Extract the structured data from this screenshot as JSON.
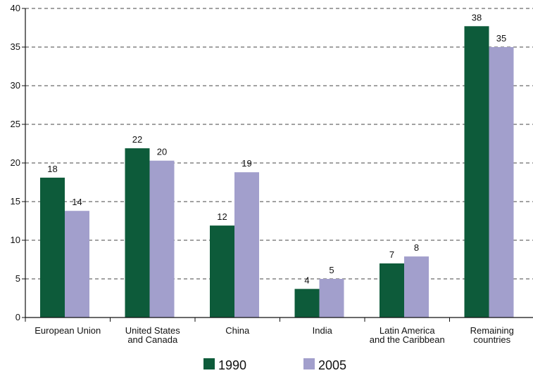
{
  "chart_data": {
    "type": "bar",
    "title": "",
    "xlabel": "",
    "ylabel": "",
    "ylim": [
      0,
      40
    ],
    "yticks": [
      0,
      5,
      10,
      15,
      20,
      25,
      30,
      35,
      40
    ],
    "grid": true,
    "legend_position": "bottom",
    "categories": [
      [
        "European Union"
      ],
      [
        "United States",
        "and Canada"
      ],
      [
        "China"
      ],
      [
        "India"
      ],
      [
        "Latin America",
        "and the Caribbean"
      ],
      [
        "Remaining",
        "countries"
      ]
    ],
    "series": [
      {
        "name": "1990",
        "color": "#0d5b3a",
        "values": [
          18.1,
          21.9,
          11.9,
          3.7,
          7.0,
          37.7
        ],
        "labels": [
          "18",
          "22",
          "12",
          "4",
          "7",
          "38"
        ]
      },
      {
        "name": "2005",
        "color": "#a29fcc",
        "values": [
          13.8,
          20.3,
          18.8,
          5.0,
          7.9,
          35.0
        ],
        "labels": [
          "14",
          "20",
          "19",
          "5",
          "8",
          "35"
        ]
      }
    ]
  }
}
